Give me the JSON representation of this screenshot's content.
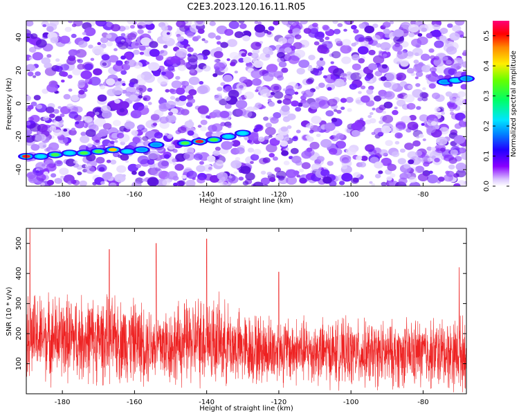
{
  "title": "C2E3.2023.120.16.11.R05",
  "colors": {
    "snr_line": "#ee2222",
    "ridge_low": "#00c8ff",
    "ridge_high": "#ff6600",
    "background": "#ffffff"
  },
  "chart_data": [
    {
      "type": "heatmap",
      "name": "spectrogram",
      "xlabel": "Height of straight line (km)",
      "ylabel": "Frequency (Hz)",
      "xlim": [
        -190,
        -68
      ],
      "ylim": [
        -50,
        50
      ],
      "xticks": [
        -180,
        -160,
        -140,
        -120,
        -100,
        -80
      ],
      "xtick_labels": [
        "-180",
        "-160",
        "-140",
        "-120",
        "-100",
        "-80"
      ],
      "yticks": [
        -40,
        -20,
        0,
        20,
        40
      ],
      "ytick_labels": [
        "-40",
        "-20",
        "0",
        "20",
        "40"
      ],
      "colorbar": {
        "label": "Normalized spectral amplitude",
        "range": [
          0.0,
          0.55
        ],
        "ticks": [
          0.0,
          0.1,
          0.2,
          0.3,
          0.4,
          0.5
        ],
        "tick_labels": [
          "0.0",
          "0.1",
          "0.2",
          "0.3",
          "0.4",
          "0.5"
        ],
        "colormap": "white-purple-blue-cyan-green-yellow-red-magenta"
      },
      "ridges": [
        {
          "x": [
            -190,
            -186,
            -182,
            -178,
            -174,
            -170,
            -166,
            -162,
            -158,
            -154
          ],
          "y": [
            -32,
            -32,
            -31,
            -30,
            -30,
            -29,
            -28,
            -29,
            -28,
            -25
          ],
          "amplitude": [
            0.45,
            0.2,
            0.25,
            0.2,
            0.22,
            0.3,
            0.35,
            0.15,
            0.12,
            0.1
          ]
        },
        {
          "x": [
            -146,
            -142,
            -138,
            -134,
            -130
          ],
          "y": [
            -24,
            -23,
            -22,
            -20,
            -18
          ],
          "amplitude": [
            0.3,
            0.45,
            0.25,
            0.2,
            0.15
          ]
        },
        {
          "x": [
            -74,
            -71,
            -68
          ],
          "y": [
            13,
            14,
            15
          ],
          "amplitude": [
            0.12,
            0.15,
            0.1
          ]
        }
      ],
      "noise_amplitude_range": [
        0.02,
        0.12
      ]
    },
    {
      "type": "line",
      "name": "snr",
      "xlabel": "Height of straight line (km)",
      "ylabel": "SNR (10 * v/v)",
      "xlim": [
        -190,
        -68
      ],
      "ylim": [
        0,
        550
      ],
      "xticks": [
        -180,
        -160,
        -140,
        -120,
        -100,
        -80
      ],
      "xtick_labels": [
        "-180",
        "-160",
        "-140",
        "-120",
        "-100",
        "-80"
      ],
      "yticks": [
        100,
        200,
        300,
        400,
        500
      ],
      "ytick_labels": [
        "100",
        "200",
        "300",
        "400",
        "500"
      ],
      "envelope": {
        "x": [
          -190,
          -180,
          -170,
          -160,
          -150,
          -140,
          -130,
          -120,
          -110,
          -100,
          -90,
          -80,
          -68
        ],
        "mean": [
          190,
          185,
          180,
          175,
          160,
          185,
          150,
          145,
          140,
          135,
          130,
          135,
          135
        ],
        "spread": [
          130,
          130,
          130,
          125,
          120,
          140,
          110,
          105,
          100,
          100,
          100,
          105,
          110
        ]
      },
      "peaks": [
        {
          "x": -189,
          "y": 550
        },
        {
          "x": -167,
          "y": 480
        },
        {
          "x": -154,
          "y": 500
        },
        {
          "x": -140,
          "y": 515
        },
        {
          "x": -120,
          "y": 405
        },
        {
          "x": -70,
          "y": 420
        }
      ]
    }
  ]
}
